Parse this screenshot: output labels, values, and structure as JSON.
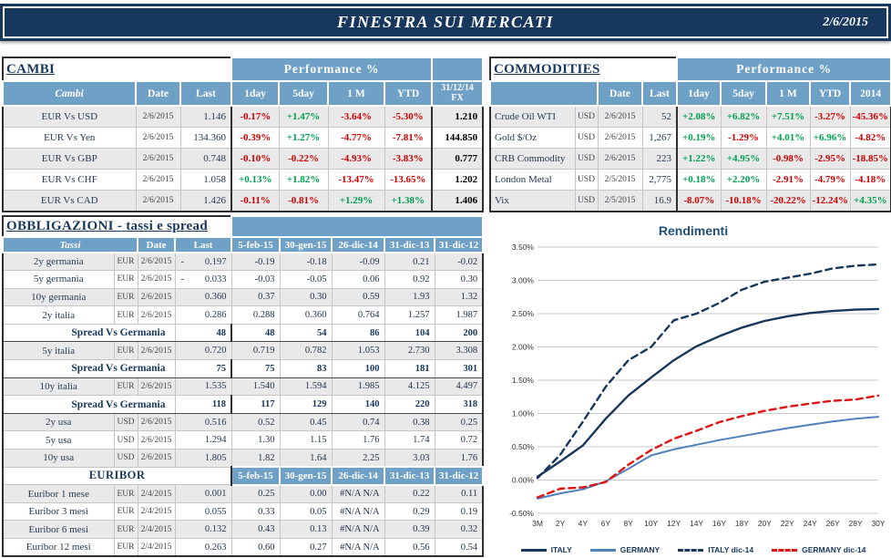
{
  "header": {
    "title": "FINESTRA SUI MERCATI",
    "date": "2/6/2015"
  },
  "colors": {
    "navy": "#17375D",
    "header_blue": "#6FA0C5",
    "row_shade": "#E9E9E9",
    "positive_green": "#00A050",
    "negative_red": "#D00000",
    "grid_gray": "#C9C9C9",
    "chart_title_blue": "#1F4E79"
  },
  "cambi": {
    "section_title": "CAMBI",
    "perf_label": "Performance  %",
    "col_headers": [
      "Cambi",
      "Date",
      "Last",
      "1day",
      "5day",
      "1 M",
      "YTD"
    ],
    "fx_header": [
      "31/12/14",
      "FX"
    ],
    "rows": [
      {
        "name": "EUR Vs USD",
        "date": "2/6/2015",
        "last": "1.146",
        "perf": [
          "-0.17%",
          "+1.47%",
          "-3.64%",
          "-5.30%"
        ],
        "fx": "1.210"
      },
      {
        "name": "EUR Vs Yen",
        "date": "2/6/2015",
        "last": "134.360",
        "perf": [
          "-0.39%",
          "+1.27%",
          "-4.77%",
          "-7.81%"
        ],
        "fx": "144.850"
      },
      {
        "name": "EUR Vs GBP",
        "date": "2/6/2015",
        "last": "0.748",
        "perf": [
          "-0.10%",
          "-0.22%",
          "-4.93%",
          "-3.83%"
        ],
        "fx": "0.777"
      },
      {
        "name": "EUR Vs CHF",
        "date": "2/6/2015",
        "last": "1.058",
        "perf": [
          "+0.13%",
          "+1.82%",
          "-13.47%",
          "-13.65%"
        ],
        "fx": "1.202"
      },
      {
        "name": "EUR Vs CAD",
        "date": "2/6/2015",
        "last": "1.426",
        "perf": [
          "-0.11%",
          "-0.81%",
          "+1.29%",
          "+1.38%"
        ],
        "fx": "1.406"
      }
    ]
  },
  "commodities": {
    "section_title": "COMMODITIES",
    "perf_label": "Performance  %",
    "col_headers": [
      "Date",
      "Last",
      "1day",
      "5day",
      "1 M",
      "YTD",
      "2014"
    ],
    "rows": [
      {
        "name": "Crude Oil WTI",
        "ccy": "USD",
        "date": "2/6/2015",
        "last": "52",
        "perf": [
          "+2.08%",
          "+6.82%",
          "+7.51%",
          "-3.27%",
          "-45.36%"
        ]
      },
      {
        "name": "Gold $/Oz",
        "ccy": "USD",
        "date": "2/6/2015",
        "last": "1,267",
        "perf": [
          "+0.19%",
          "-1.29%",
          "+4.01%",
          "+6.96%",
          "-4.82%"
        ]
      },
      {
        "name": "CRB Commodity",
        "ccy": "USD",
        "date": "2/6/2015",
        "last": "223",
        "perf": [
          "+1.22%",
          "+4.95%",
          "-0.98%",
          "-2.95%",
          "-18.85%"
        ]
      },
      {
        "name": "London Metal",
        "ccy": "USD",
        "date": "2/5/2015",
        "last": "2,775",
        "perf": [
          "+0.18%",
          "+2.20%",
          "-2.91%",
          "-4.79%",
          "-4.18%"
        ]
      },
      {
        "name": "Vix",
        "ccy": "USD",
        "date": "2/5/2015",
        "last": "16.9",
        "perf": [
          "-8.07%",
          "-10.18%",
          "-20.22%",
          "-12.24%",
          "+4.35%"
        ]
      }
    ]
  },
  "bonds": {
    "section_title": "OBBLIGAZIONI - tassi e spread",
    "col_headers": [
      "Tassi",
      "Date",
      "Last",
      "5-feb-15",
      "30-gen-15",
      "26-dic-14",
      "31-dic-13",
      "31-dic-12"
    ],
    "rows": [
      {
        "type": "rate",
        "name": "2y germania",
        "ccy": "EUR",
        "date": "2/6/2015",
        "last_sign": "-",
        "last": "0.197",
        "vals": [
          "-0.19",
          "-0.18",
          "-0.09",
          "0.21",
          "-0.02"
        ],
        "shade": true
      },
      {
        "type": "rate",
        "name": "5y germania",
        "ccy": "EUR",
        "date": "2/6/2015",
        "last_sign": "-",
        "last": "0.033",
        "vals": [
          "-0.03",
          "-0.05",
          "0.06",
          "0.92",
          "0.30"
        ],
        "shade": false
      },
      {
        "type": "rate",
        "name": "10y germania",
        "ccy": "EUR",
        "date": "2/6/2015",
        "last_sign": "",
        "last": "0.360",
        "vals": [
          "0.37",
          "0.30",
          "0.59",
          "1.93",
          "1.32"
        ],
        "shade": true
      },
      {
        "type": "rate",
        "name": "2y italia",
        "ccy": "EUR",
        "date": "2/6/2015",
        "last_sign": "",
        "last": "0.286",
        "vals": [
          "0.288",
          "0.360",
          "0.764",
          "1.257",
          "1.987"
        ],
        "shade": false
      },
      {
        "type": "spread",
        "name": "Spread Vs Germania",
        "last": "48",
        "vals": [
          "48",
          "54",
          "86",
          "104",
          "200"
        ]
      },
      {
        "type": "rate",
        "name": "5y italia",
        "ccy": "EUR",
        "date": "2/6/2015",
        "last_sign": "",
        "last": "0.720",
        "vals": [
          "0.719",
          "0.782",
          "1.053",
          "2.730",
          "3.308"
        ],
        "shade": true
      },
      {
        "type": "spread",
        "name": "Spread Vs Germania",
        "last": "75",
        "vals": [
          "75",
          "83",
          "100",
          "181",
          "301"
        ]
      },
      {
        "type": "rate",
        "name": "10y italia",
        "ccy": "EUR",
        "date": "2/6/2015",
        "last_sign": "",
        "last": "1.535",
        "vals": [
          "1.540",
          "1.594",
          "1.985",
          "4.125",
          "4.497"
        ],
        "shade": true
      },
      {
        "type": "spread",
        "name": "Spread Vs Germania",
        "last": "118",
        "vals": [
          "117",
          "129",
          "140",
          "220",
          "318"
        ]
      },
      {
        "type": "rate",
        "name": "2y usa",
        "ccy": "USD",
        "date": "2/6/2015",
        "last_sign": "",
        "last": "0.516",
        "vals": [
          "0.52",
          "0.45",
          "0.74",
          "0.38",
          "0.25"
        ],
        "shade": true
      },
      {
        "type": "rate",
        "name": "5y usa",
        "ccy": "USD",
        "date": "2/6/2015",
        "last_sign": "",
        "last": "1.294",
        "vals": [
          "1.30",
          "1.15",
          "1.76",
          "1.74",
          "0.72"
        ],
        "shade": false
      },
      {
        "type": "rate",
        "name": "10y usa",
        "ccy": "USD",
        "date": "2/6/2015",
        "last_sign": "",
        "last": "1.805",
        "vals": [
          "1.82",
          "1.64",
          "2.25",
          "3.03",
          "1.76"
        ],
        "shade": true
      },
      {
        "type": "subheader",
        "name": "EURIBOR",
        "vals": [
          "5-feb-15",
          "30-gen-15",
          "26-dic-14",
          "31-dic-13",
          "31-dic-12"
        ]
      },
      {
        "type": "rate",
        "name": "Euribor 1 mese",
        "ccy": "EUR",
        "date": "2/4/2015",
        "last_sign": "",
        "last": "0.001",
        "vals": [
          "0.25",
          "0.00",
          "#N/A N/A",
          "0.22",
          "0.11"
        ],
        "shade": true
      },
      {
        "type": "rate",
        "name": "Euribor 3 mesi",
        "ccy": "EUR",
        "date": "2/4/2015",
        "last_sign": "",
        "last": "0.055",
        "vals": [
          "0.33",
          "0.05",
          "#N/A N/A",
          "0.29",
          "0.19"
        ],
        "shade": false
      },
      {
        "type": "rate",
        "name": "Euribor 6 mesi",
        "ccy": "EUR",
        "date": "2/4/2015",
        "last_sign": "",
        "last": "0.132",
        "vals": [
          "0.43",
          "0.13",
          "#N/A N/A",
          "0.39",
          "0.32"
        ],
        "shade": true
      },
      {
        "type": "rate",
        "name": "Euribor 12 mesi",
        "ccy": "EUR",
        "date": "2/4/2015",
        "last_sign": "",
        "last": "0.263",
        "vals": [
          "0.60",
          "0.27",
          "#N/A N/A",
          "0.56",
          "0.54"
        ],
        "shade": false
      }
    ]
  },
  "chart_data": {
    "type": "line",
    "title": "Rendimenti",
    "xlabel": "",
    "ylabel": "",
    "x": [
      "3M",
      "2Y",
      "4Y",
      "6Y",
      "8Y",
      "10Y",
      "12Y",
      "14Y",
      "16Y",
      "18Y",
      "20Y",
      "22Y",
      "24Y",
      "26Y",
      "28Y",
      "30Y"
    ],
    "ylim": [
      -0.5,
      3.5
    ],
    "ytick_step": 0.5,
    "ytick_format": "percent",
    "grid": true,
    "legend_position": "bottom",
    "series": [
      {
        "name": "ITALY",
        "color": "#17375D",
        "dash": false,
        "width": 2.4,
        "values": [
          0.05,
          0.28,
          0.52,
          0.92,
          1.27,
          1.54,
          1.8,
          2.01,
          2.16,
          2.29,
          2.39,
          2.46,
          2.51,
          2.54,
          2.56,
          2.57
        ]
      },
      {
        "name": "GERMANY",
        "color": "#4F81BD",
        "dash": false,
        "width": 2,
        "values": [
          -0.28,
          -0.2,
          -0.14,
          -0.02,
          0.17,
          0.37,
          0.46,
          0.53,
          0.6,
          0.66,
          0.72,
          0.78,
          0.83,
          0.88,
          0.92,
          0.95
        ]
      },
      {
        "name": "ITALY dic-14",
        "color": "#17375D",
        "dash": true,
        "width": 2.4,
        "values": [
          0.03,
          0.38,
          0.88,
          1.4,
          1.8,
          2.0,
          2.4,
          2.5,
          2.66,
          2.86,
          2.98,
          3.04,
          3.1,
          3.18,
          3.22,
          3.24
        ]
      },
      {
        "name": "GERMANY dic-14",
        "color": "#E01414",
        "dash": true,
        "width": 2.4,
        "values": [
          -0.26,
          -0.13,
          -0.11,
          -0.03,
          0.23,
          0.45,
          0.62,
          0.74,
          0.87,
          0.96,
          1.04,
          1.1,
          1.15,
          1.19,
          1.21,
          1.27
        ]
      }
    ]
  }
}
